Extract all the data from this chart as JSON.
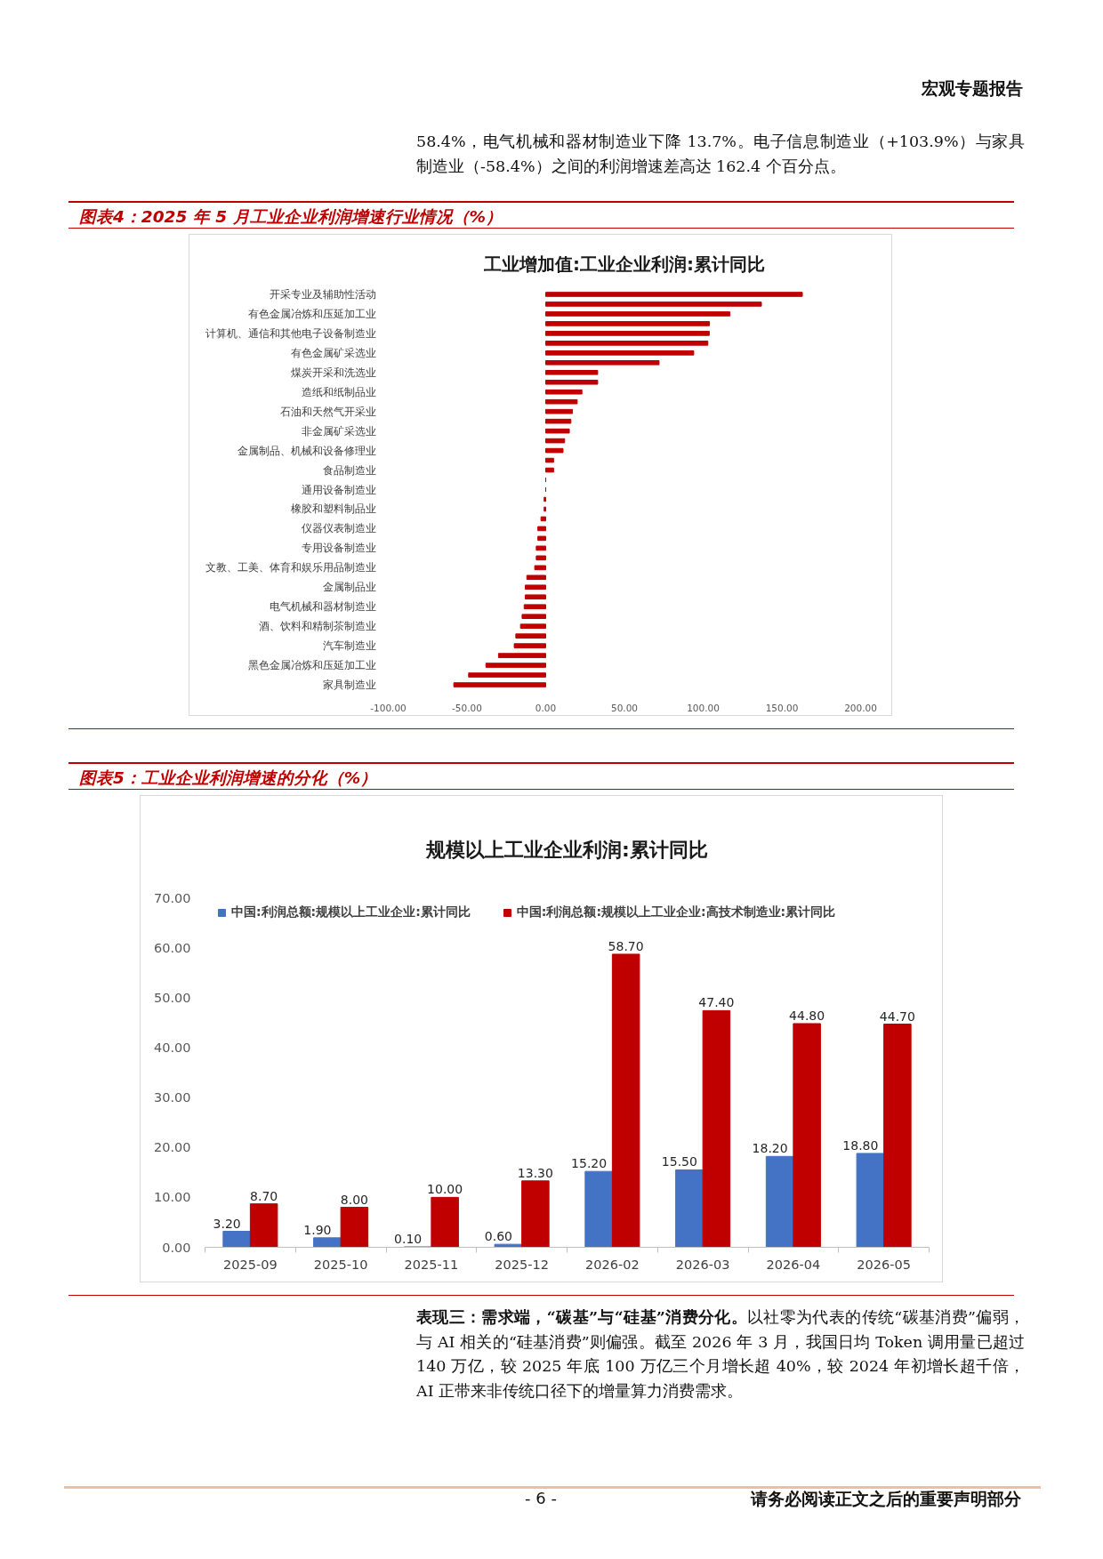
{
  "chart_data": [
    {
      "type": "bar",
      "orientation": "horizontal",
      "title": "工业增加值:工业企业利润:累计同比",
      "categories": [
        "开采专业及辅助性活动",
        null,
        "有色金属冶炼和压延加工业",
        null,
        "计算机、通信和其他电子设备制造业",
        null,
        "有色金属矿采选业",
        null,
        "煤炭开采和洗选业",
        null,
        "造纸和纸制品业",
        null,
        "石油和天然气开采业",
        null,
        "非金属矿采选业",
        null,
        "金属制品、机械和设备修理业",
        null,
        "食品制造业",
        null,
        "通用设备制造业",
        null,
        "橡胶和塑料制品业",
        null,
        "仪器仪表制造业",
        null,
        "专用设备制造业",
        null,
        "文教、工美、体育和娱乐用品制造业",
        null,
        "金属制品业",
        null,
        "电气机械和器材制造业",
        null,
        "酒、饮料和精制茶制造业",
        null,
        "汽车制造业",
        null,
        "黑色金属冶炼和压延加工业",
        null,
        "家具制造业"
      ],
      "values": [
        163,
        137,
        117,
        104,
        103.9,
        103,
        94,
        72,
        33,
        33,
        23,
        20,
        17,
        16,
        15,
        12,
        11,
        5,
        5,
        0,
        0,
        -1,
        -1,
        -3,
        -5,
        -5,
        -6,
        -6,
        -7,
        -12,
        -13,
        -13,
        -13.7,
        -15,
        -16,
        -19,
        -20,
        -30,
        -38,
        -49,
        -58.4
      ],
      "color": "#c00000",
      "xlim": [
        -100,
        200
      ],
      "xticks": [
        {
          "value": -100,
          "label": "-100.00"
        },
        {
          "value": -50,
          "label": "-50.00"
        },
        {
          "value": 0,
          "label": "0.00"
        },
        {
          "value": 50,
          "label": "50.00"
        },
        {
          "value": 100,
          "label": "100.00"
        },
        {
          "value": 150,
          "label": "150.00"
        },
        {
          "value": 200,
          "label": "200.00"
        }
      ],
      "annotations": [
        "宏观专题报告",
        "58.4%，电气机械和器材制造业下降 13.7%。电子信息制造业（+103.9%）与家具制造业（-58.4%）之间的利润增速差高达 162.4 个百分点。",
        "图表4：2025 年 5 月工业企业利润增速行业情况（%）"
      ]
    },
    {
      "type": "bar",
      "title": "规模以上工业企业利润:累计同比",
      "categories": [
        "2025-09",
        "2025-10",
        "2025-11",
        "2025-12",
        "2026-02",
        "2026-03",
        "2026-04",
        "2026-05"
      ],
      "series": [
        {
          "name": "中国:利润总额:规模以上工业企业:累计同比",
          "color": "#4472c4",
          "values": [
            3.2,
            1.9,
            0.1,
            0.6,
            15.2,
            15.5,
            18.2,
            18.8
          ],
          "value_labels": [
            "3.20",
            "1.90",
            "0.10",
            "0.60",
            "15.20",
            "15.50",
            "18.20",
            "18.80"
          ]
        },
        {
          "name": "中国:利润总额:规模以上工业企业:高技术制造业:累计同比",
          "color": "#c00000",
          "values": [
            8.7,
            8.0,
            10.0,
            13.3,
            58.7,
            47.4,
            44.8,
            44.7
          ],
          "value_labels": [
            "8.70",
            "8.00",
            "10.00",
            "13.30",
            "58.70",
            "47.40",
            "44.80",
            "44.70"
          ]
        }
      ],
      "ylim": [
        0,
        70
      ],
      "yticks": [
        {
          "value": 0,
          "label": "0.00"
        },
        {
          "value": 10,
          "label": "10.00"
        },
        {
          "value": 20,
          "label": "20.00"
        },
        {
          "value": 30,
          "label": "30.00"
        },
        {
          "value": 40,
          "label": "40.00"
        },
        {
          "value": 50,
          "label": "50.00"
        },
        {
          "value": 60,
          "label": "60.00"
        },
        {
          "value": 70,
          "label": "70.00"
        }
      ],
      "legend": "top",
      "annotations": [
        "图表5：工业企业利润增速的分化（%）",
        "表现三：需求端，“碳基”与“硅基”消费分化。",
        "以社零为代表的传统“碳基消费”偏弱，与 AI 相关的“硅基消费”则偏强。截至 2026 年 3 月，我国日均 Token 调用量已超过 140 万亿，较 2025 年底 100 万亿三个月增长超 40%，较 2024 年初增长超千倍，AI 正带来非传统口径下的增量算力消费需求。",
        "- 6 -",
        "请务必阅读正文之后的重要声明部分"
      ]
    }
  ]
}
